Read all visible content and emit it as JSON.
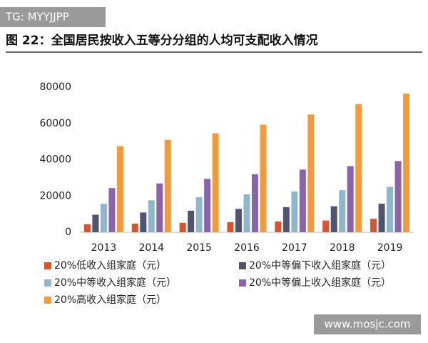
{
  "watermarks": [
    "TG: MYYJJPP",
    "www.mosjc.com"
  ],
  "chart_data": {
    "type": "bar",
    "title": "图 22：全国居民按收入五等分分组的人均可支配收入情况",
    "categories": [
      "2013",
      "2014",
      "2015",
      "2016",
      "2017",
      "2018",
      "2019"
    ],
    "series": [
      {
        "name": "20%低收入组家庭（元）",
        "color": "#d9532c",
        "values": [
          4402,
          4747,
          5221,
          5529,
          5958,
          6440,
          7380
        ]
      },
      {
        "name": "20%中等偏下收入组家庭（元）",
        "color": "#4f5470",
        "values": [
          9654,
          10887,
          11894,
          12899,
          13843,
          14361,
          15777
        ]
      },
      {
        "name": "20%中等收入组家庭（元）",
        "color": "#8fb6cc",
        "values": [
          15698,
          17631,
          19320,
          20924,
          22495,
          23189,
          25035
        ]
      },
      {
        "name": "20%中等偏上收入组家庭（元）",
        "color": "#8a64a8",
        "values": [
          24361,
          26937,
          29438,
          31990,
          34547,
          36471,
          39230
        ]
      },
      {
        "name": "20%高收入组家庭（元）",
        "color": "#f39a3c",
        "values": [
          47457,
          50968,
          54544,
          59259,
          64934,
          70640,
          76401
        ]
      }
    ],
    "ylim": [
      0,
      80000
    ],
    "yticks": [
      0,
      20000,
      40000,
      60000,
      80000
    ],
    "grid": false
  }
}
